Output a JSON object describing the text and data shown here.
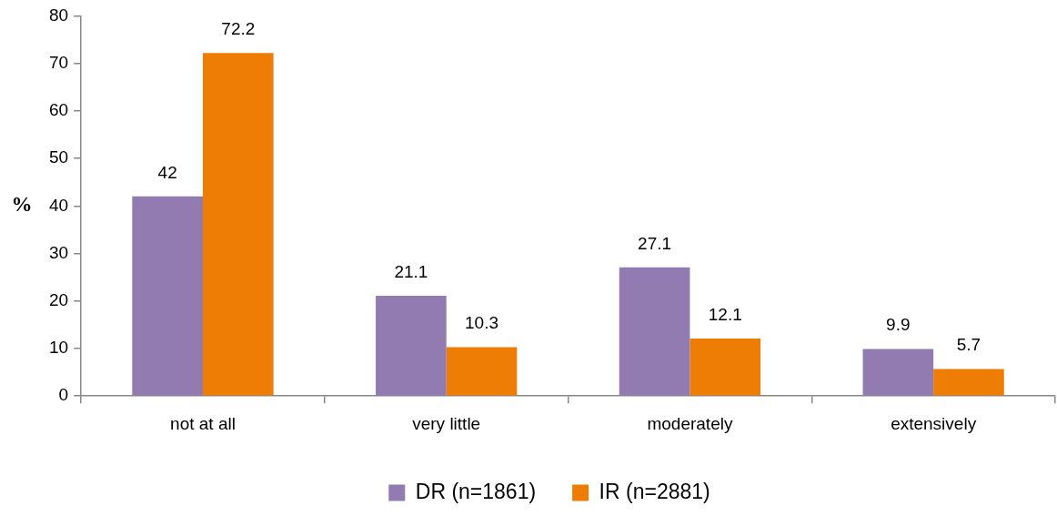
{
  "chart_data": {
    "type": "bar",
    "ylabel": "%",
    "categories": [
      "not at all",
      "very little",
      "moderately",
      "extensively"
    ],
    "series": [
      {
        "name": "DR (n=1861)",
        "color": "#927bb1",
        "values": [
          42,
          21.1,
          27.1,
          9.9
        ]
      },
      {
        "name": "IR (n=2881)",
        "color": "#ed7d05",
        "values": [
          72.2,
          10.3,
          12.1,
          5.7
        ]
      }
    ],
    "ylim": [
      0,
      80
    ],
    "yticks": [
      0,
      10,
      20,
      30,
      40,
      50,
      60,
      70,
      80
    ],
    "grid": false,
    "legend": "bottom",
    "data_labels": true
  }
}
